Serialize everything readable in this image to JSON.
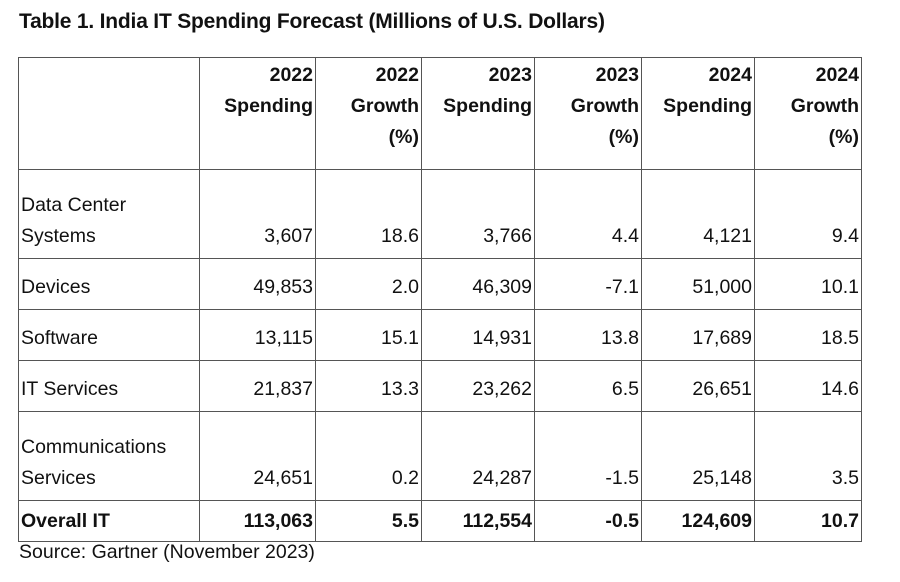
{
  "title": "Table 1. India IT Spending Forecast (Millions of U.S. Dollars)",
  "columns": [
    {
      "lines": [
        "2022",
        "Spending"
      ]
    },
    {
      "lines": [
        "2022",
        "Growth",
        "(%)"
      ]
    },
    {
      "lines": [
        "2023",
        "Spending"
      ]
    },
    {
      "lines": [
        "2023",
        "Growth",
        "(%)"
      ]
    },
    {
      "lines": [
        "2024",
        "Spending"
      ]
    },
    {
      "lines": [
        "2024",
        "Growth",
        "(%)"
      ]
    }
  ],
  "rows": [
    {
      "label_lines": [
        "Data Center",
        "Systems"
      ],
      "values": [
        "3,607",
        "18.6",
        "3,766",
        "4.4",
        "4,121",
        "9.4"
      ]
    },
    {
      "label_lines": [
        "Devices"
      ],
      "values": [
        "49,853",
        "2.0",
        "46,309",
        "-7.1",
        "51,000",
        "10.1"
      ]
    },
    {
      "label_lines": [
        "Software"
      ],
      "values": [
        "13,115",
        "15.1",
        "14,931",
        "13.8",
        "17,689",
        "18.5"
      ]
    },
    {
      "label_lines": [
        "IT Services"
      ],
      "values": [
        "21,837",
        "13.3",
        "23,262",
        "6.5",
        "26,651",
        "14.6"
      ]
    },
    {
      "label_lines": [
        "Communications",
        "Services"
      ],
      "values": [
        "24,651",
        "0.2",
        "24,287",
        "-1.5",
        "25,148",
        "3.5"
      ]
    }
  ],
  "total": {
    "label": "Overall IT",
    "values": [
      "113,063",
      "5.5",
      "112,554",
      "-0.5",
      "124,609",
      "10.7"
    ]
  },
  "source": "Source: Gartner (November 2023)"
}
